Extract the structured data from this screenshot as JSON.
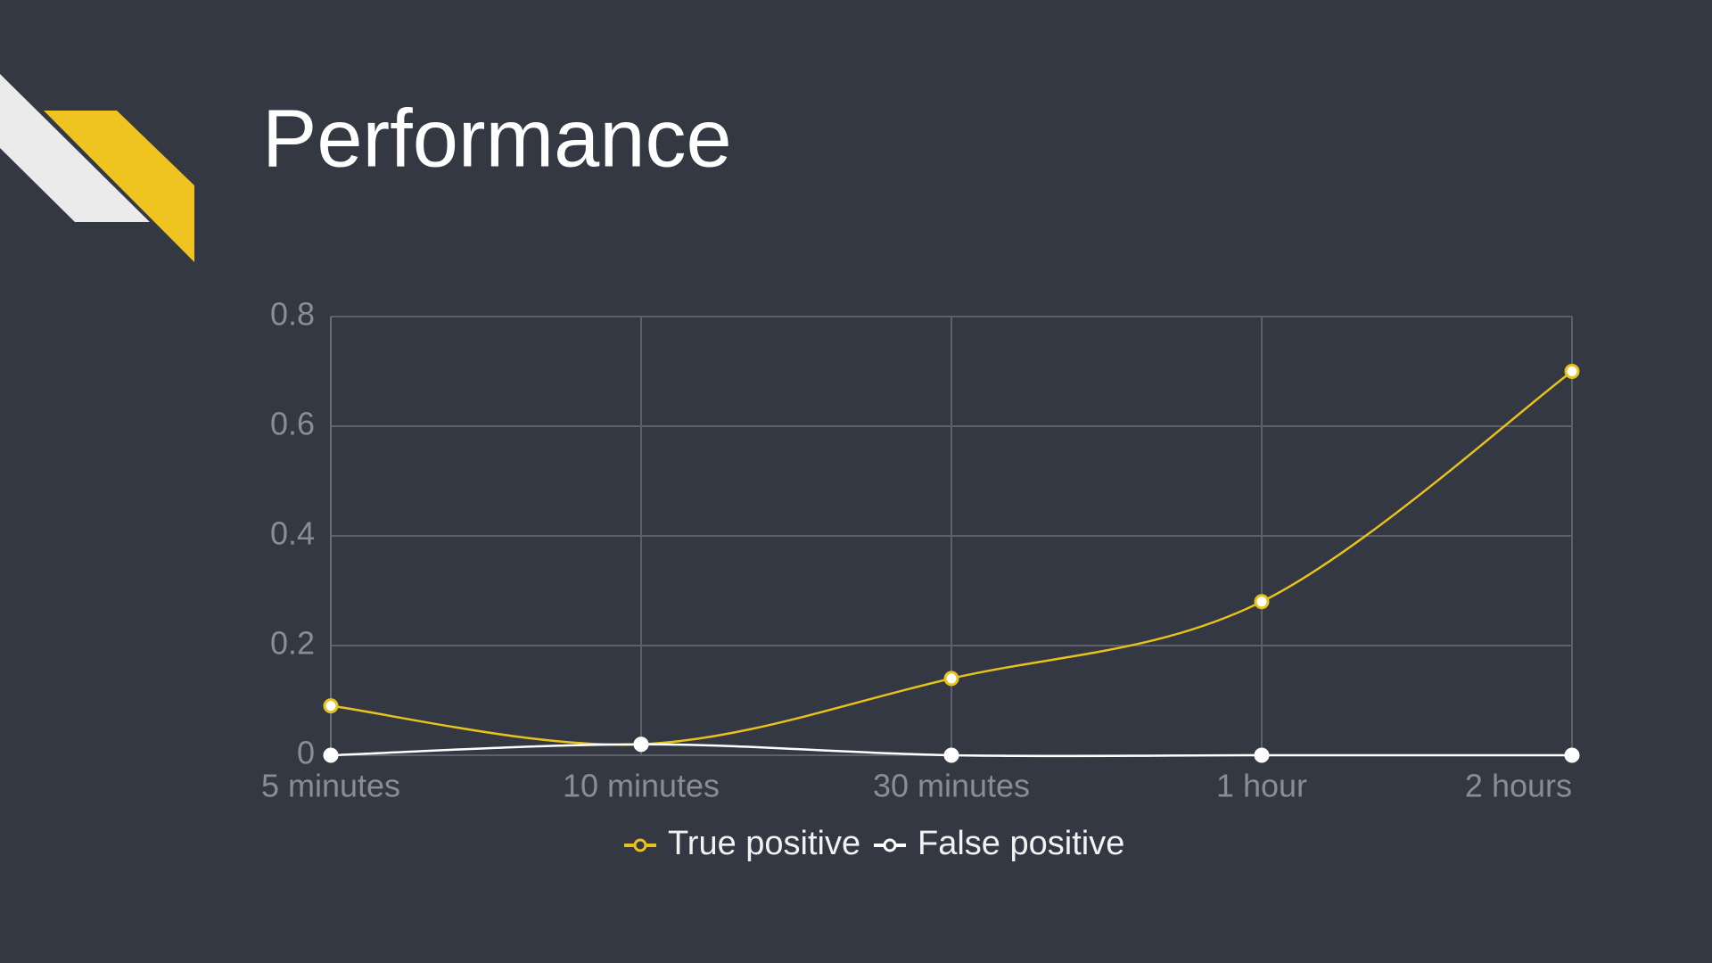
{
  "title": "Performance",
  "chart_data": {
    "type": "line",
    "categories": [
      "5 minutes",
      "10 minutes",
      "30 minutes",
      "1 hour",
      "2 hours"
    ],
    "series": [
      {
        "name": "True positive",
        "color": "#e8c21c",
        "values": [
          0.09,
          0.02,
          0.14,
          0.28,
          0.7
        ]
      },
      {
        "name": "False positive",
        "color": "#ffffff",
        "values": [
          0,
          0.02,
          0,
          0,
          0
        ]
      }
    ],
    "ylim": [
      0,
      0.8
    ],
    "yticks": [
      0,
      0.2,
      0.4,
      0.6,
      0.8
    ],
    "grid": true,
    "smooth": true,
    "legend": "bottom"
  }
}
